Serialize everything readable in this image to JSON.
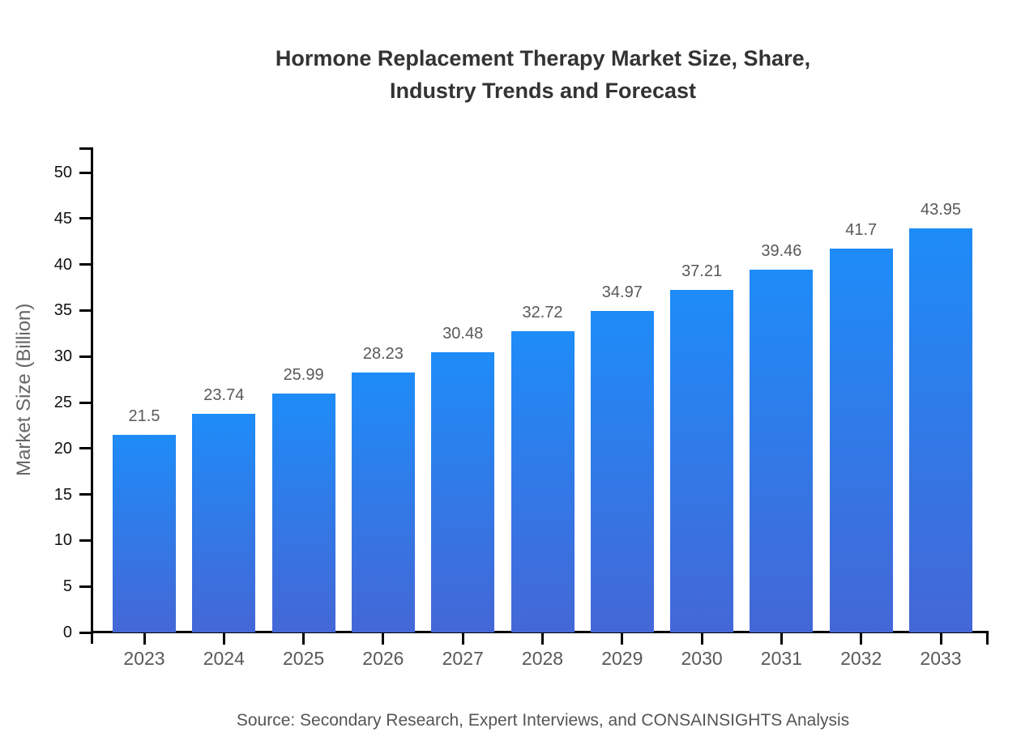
{
  "page": {
    "title_lines": [
      "Hormone Replacement Therapy Market Size, Share,",
      "Industry Trends and Forecast"
    ],
    "source_note": "Source: Secondary Research, Expert Interviews, and CONSAINSIGHTS Analysis"
  },
  "chart_data": {
    "type": "bar",
    "title": "Hormone Replacement Therapy Market Size, Share, Industry Trends and Forecast",
    "categories": [
      "2023",
      "2024",
      "2025",
      "2026",
      "2027",
      "2028",
      "2029",
      "2030",
      "2031",
      "2032",
      "2033"
    ],
    "values": [
      21.5,
      23.74,
      25.99,
      28.23,
      30.48,
      32.72,
      34.97,
      37.21,
      39.46,
      41.7,
      43.95
    ],
    "value_labels": [
      "21.5",
      "23.74",
      "25.99",
      "28.23",
      "30.48",
      "32.72",
      "34.97",
      "37.21",
      "39.46",
      "41.7",
      "43.95"
    ],
    "xlabel": "",
    "ylabel": "Market Size (Billion)",
    "ylim": [
      0,
      50
    ],
    "yticks": [
      0,
      5,
      10,
      15,
      20,
      25,
      30,
      35,
      40,
      45,
      50
    ],
    "grid": false,
    "legend": false,
    "colors": {
      "bar_gradient_top": "#1e8cf8",
      "bar_gradient_bottom": "#4467d6",
      "axis": "#000000",
      "y_tick_label": "#111111",
      "category_label": "#58595b",
      "value_label": "#58595b",
      "axis_title": "#666666",
      "title": "#333333",
      "source": "#555555"
    }
  }
}
